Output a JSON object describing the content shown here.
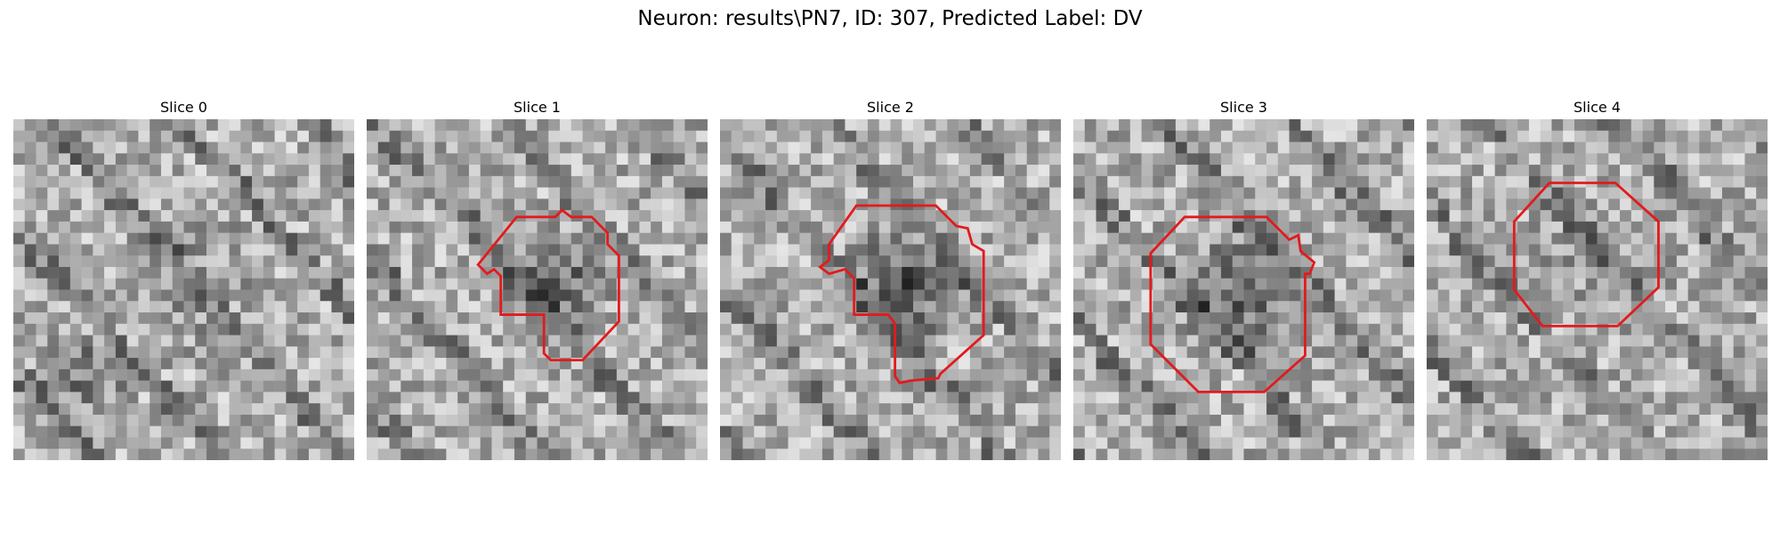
{
  "figure": {
    "title": "Neuron: results\\PN7, ID: 307, Predicted Label: DV"
  },
  "panels": [
    {
      "label": "Slice 0",
      "has_contour": false
    },
    {
      "label": "Slice 1",
      "has_contour": true
    },
    {
      "label": "Slice 2",
      "has_contour": true
    },
    {
      "label": "Slice 3",
      "has_contour": true
    },
    {
      "label": "Slice 4",
      "has_contour": true
    }
  ],
  "colors": {
    "contour": "#e31a1c",
    "background": "#ffffff"
  }
}
